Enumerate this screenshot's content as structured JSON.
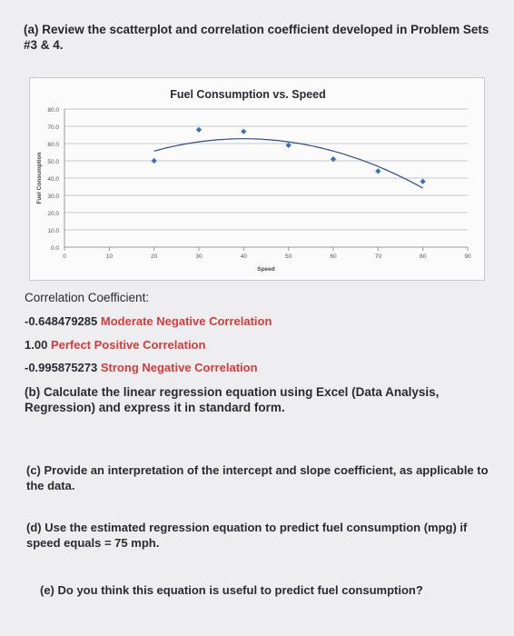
{
  "questions": {
    "a": "(a) Review the scatterplot and correlation coefficient developed in Problem Sets #3 & 4.",
    "b": "(b) Calculate the linear regression equation using Excel (Data Analysis, Regression) and express it in standard form.",
    "c": "(c) Provide an interpretation of the intercept and slope coefficient, as applicable to the data.",
    "d": "(d) Use the estimated regression equation to predict fuel consumption (mpg) if speed equals = 75 mph.",
    "e": "(e) Do you think this equation is useful to predict fuel consumption?"
  },
  "correlation": {
    "title": "Correlation Coefficient:",
    "items": [
      {
        "value": "-0.648479285",
        "label": "Moderate Negative Correlation"
      },
      {
        "value": "1.00",
        "label": "Perfect Positive Correlation"
      },
      {
        "value": "-0.995875273",
        "label": "Strong Negative Correlation"
      }
    ]
  },
  "chart_data": {
    "type": "scatter",
    "title": "Fuel Consumption vs. Speed",
    "xlabel": "Speed",
    "ylabel": "Fuel Consumption",
    "xlim": [
      0,
      90
    ],
    "ylim": [
      0,
      80
    ],
    "x_ticks": [
      "0",
      "10",
      "20",
      "30",
      "40",
      "50",
      "60",
      "70",
      "80",
      "90"
    ],
    "y_ticks": [
      "0.0",
      "10.0",
      "20.0",
      "30.0",
      "40.0",
      "50.0",
      "60.0",
      "70.0",
      "80.0"
    ],
    "grid": true,
    "trendline": "polynomial",
    "series": [
      {
        "x": [
          20,
          30,
          40,
          50,
          60,
          70,
          80
        ],
        "y": [
          50,
          68,
          67,
          59,
          51,
          44,
          38
        ]
      }
    ],
    "colors": {
      "points": "#3b6fb6",
      "trend": "#2e4f85",
      "grid": "#c9c9cf"
    }
  }
}
